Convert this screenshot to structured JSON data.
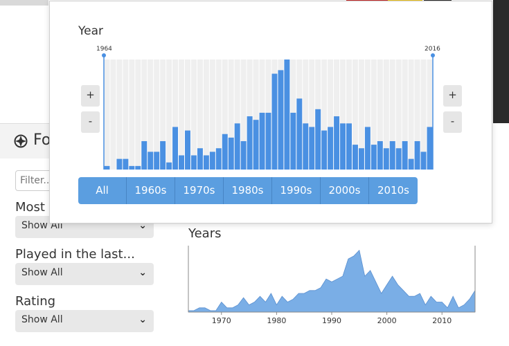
{
  "sidebar": {
    "title": "Fo",
    "filter_placeholder": "Filter..",
    "groups": [
      {
        "label": "Most P",
        "value": "Show All"
      },
      {
        "label": "Played in the last...",
        "value": "Show All"
      },
      {
        "label": "Rating",
        "value": "Show All"
      }
    ]
  },
  "years_section": {
    "title": "Years",
    "chart_data": {
      "type": "area",
      "x": [
        1964,
        1965,
        1966,
        1967,
        1968,
        1969,
        1970,
        1971,
        1972,
        1973,
        1974,
        1975,
        1976,
        1977,
        1978,
        1979,
        1980,
        1981,
        1982,
        1983,
        1984,
        1985,
        1986,
        1987,
        1988,
        1989,
        1990,
        1991,
        1992,
        1993,
        1994,
        1995,
        1996,
        1997,
        1998,
        1999,
        2000,
        2001,
        2002,
        2003,
        2004,
        2005,
        2006,
        2007,
        2008,
        2009,
        2010,
        2011,
        2012,
        2013,
        2014,
        2015,
        2016
      ],
      "y": [
        1,
        1,
        3,
        3,
        1,
        1,
        7,
        3,
        3,
        5,
        10,
        5,
        7,
        11,
        7,
        13,
        5,
        11,
        7,
        9,
        13,
        13,
        15,
        15,
        17,
        23,
        21,
        23,
        25,
        37,
        39,
        43,
        25,
        29,
        21,
        13,
        19,
        25,
        19,
        15,
        11,
        11,
        13,
        5,
        11,
        7,
        7,
        3,
        11,
        3,
        5,
        9,
        15
      ],
      "xticks": [
        1970,
        1980,
        1990,
        2000,
        2010
      ],
      "xlim": [
        1964,
        2016
      ],
      "color": "#7aaee6"
    }
  },
  "year_popup": {
    "title": "Year",
    "range_start": "1964",
    "range_end": "2016",
    "zoom_in_label": "+",
    "zoom_out_label": "-",
    "decade_buttons": [
      "All",
      "1960s",
      "1970s",
      "1980s",
      "1990s",
      "2000s",
      "2010s"
    ],
    "chart_data": {
      "type": "bar",
      "categories": [
        1964,
        1965,
        1966,
        1967,
        1968,
        1969,
        1970,
        1971,
        1972,
        1973,
        1974,
        1975,
        1976,
        1977,
        1978,
        1979,
        1980,
        1981,
        1982,
        1983,
        1984,
        1985,
        1986,
        1987,
        1988,
        1989,
        1990,
        1991,
        1992,
        1993,
        1994,
        1995,
        1996,
        1997,
        1998,
        1999,
        2000,
        2001,
        2002,
        2003,
        2004,
        2005,
        2006,
        2007,
        2008,
        2009,
        2010,
        2011,
        2012,
        2013,
        2014,
        2015,
        2016
      ],
      "values": [
        1,
        0,
        3,
        3,
        1,
        1,
        8,
        5,
        5,
        8,
        2,
        12,
        4,
        11,
        4,
        6,
        4,
        5,
        6,
        10,
        9,
        13,
        8,
        15,
        14,
        16,
        16,
        27,
        28,
        31,
        16,
        20,
        13,
        12,
        17,
        11,
        12,
        15,
        13,
        13,
        7,
        6,
        12,
        7,
        8,
        6,
        8,
        6,
        8,
        3,
        8,
        5,
        12
      ],
      "ylim": [
        0,
        31
      ],
      "bar_color": "#4a90e2",
      "column_bg": "#efefef"
    }
  },
  "colors": {
    "accent": "#4a90e2",
    "button_bar": "#5b9ee0",
    "area_fill": "#7aaee6"
  }
}
